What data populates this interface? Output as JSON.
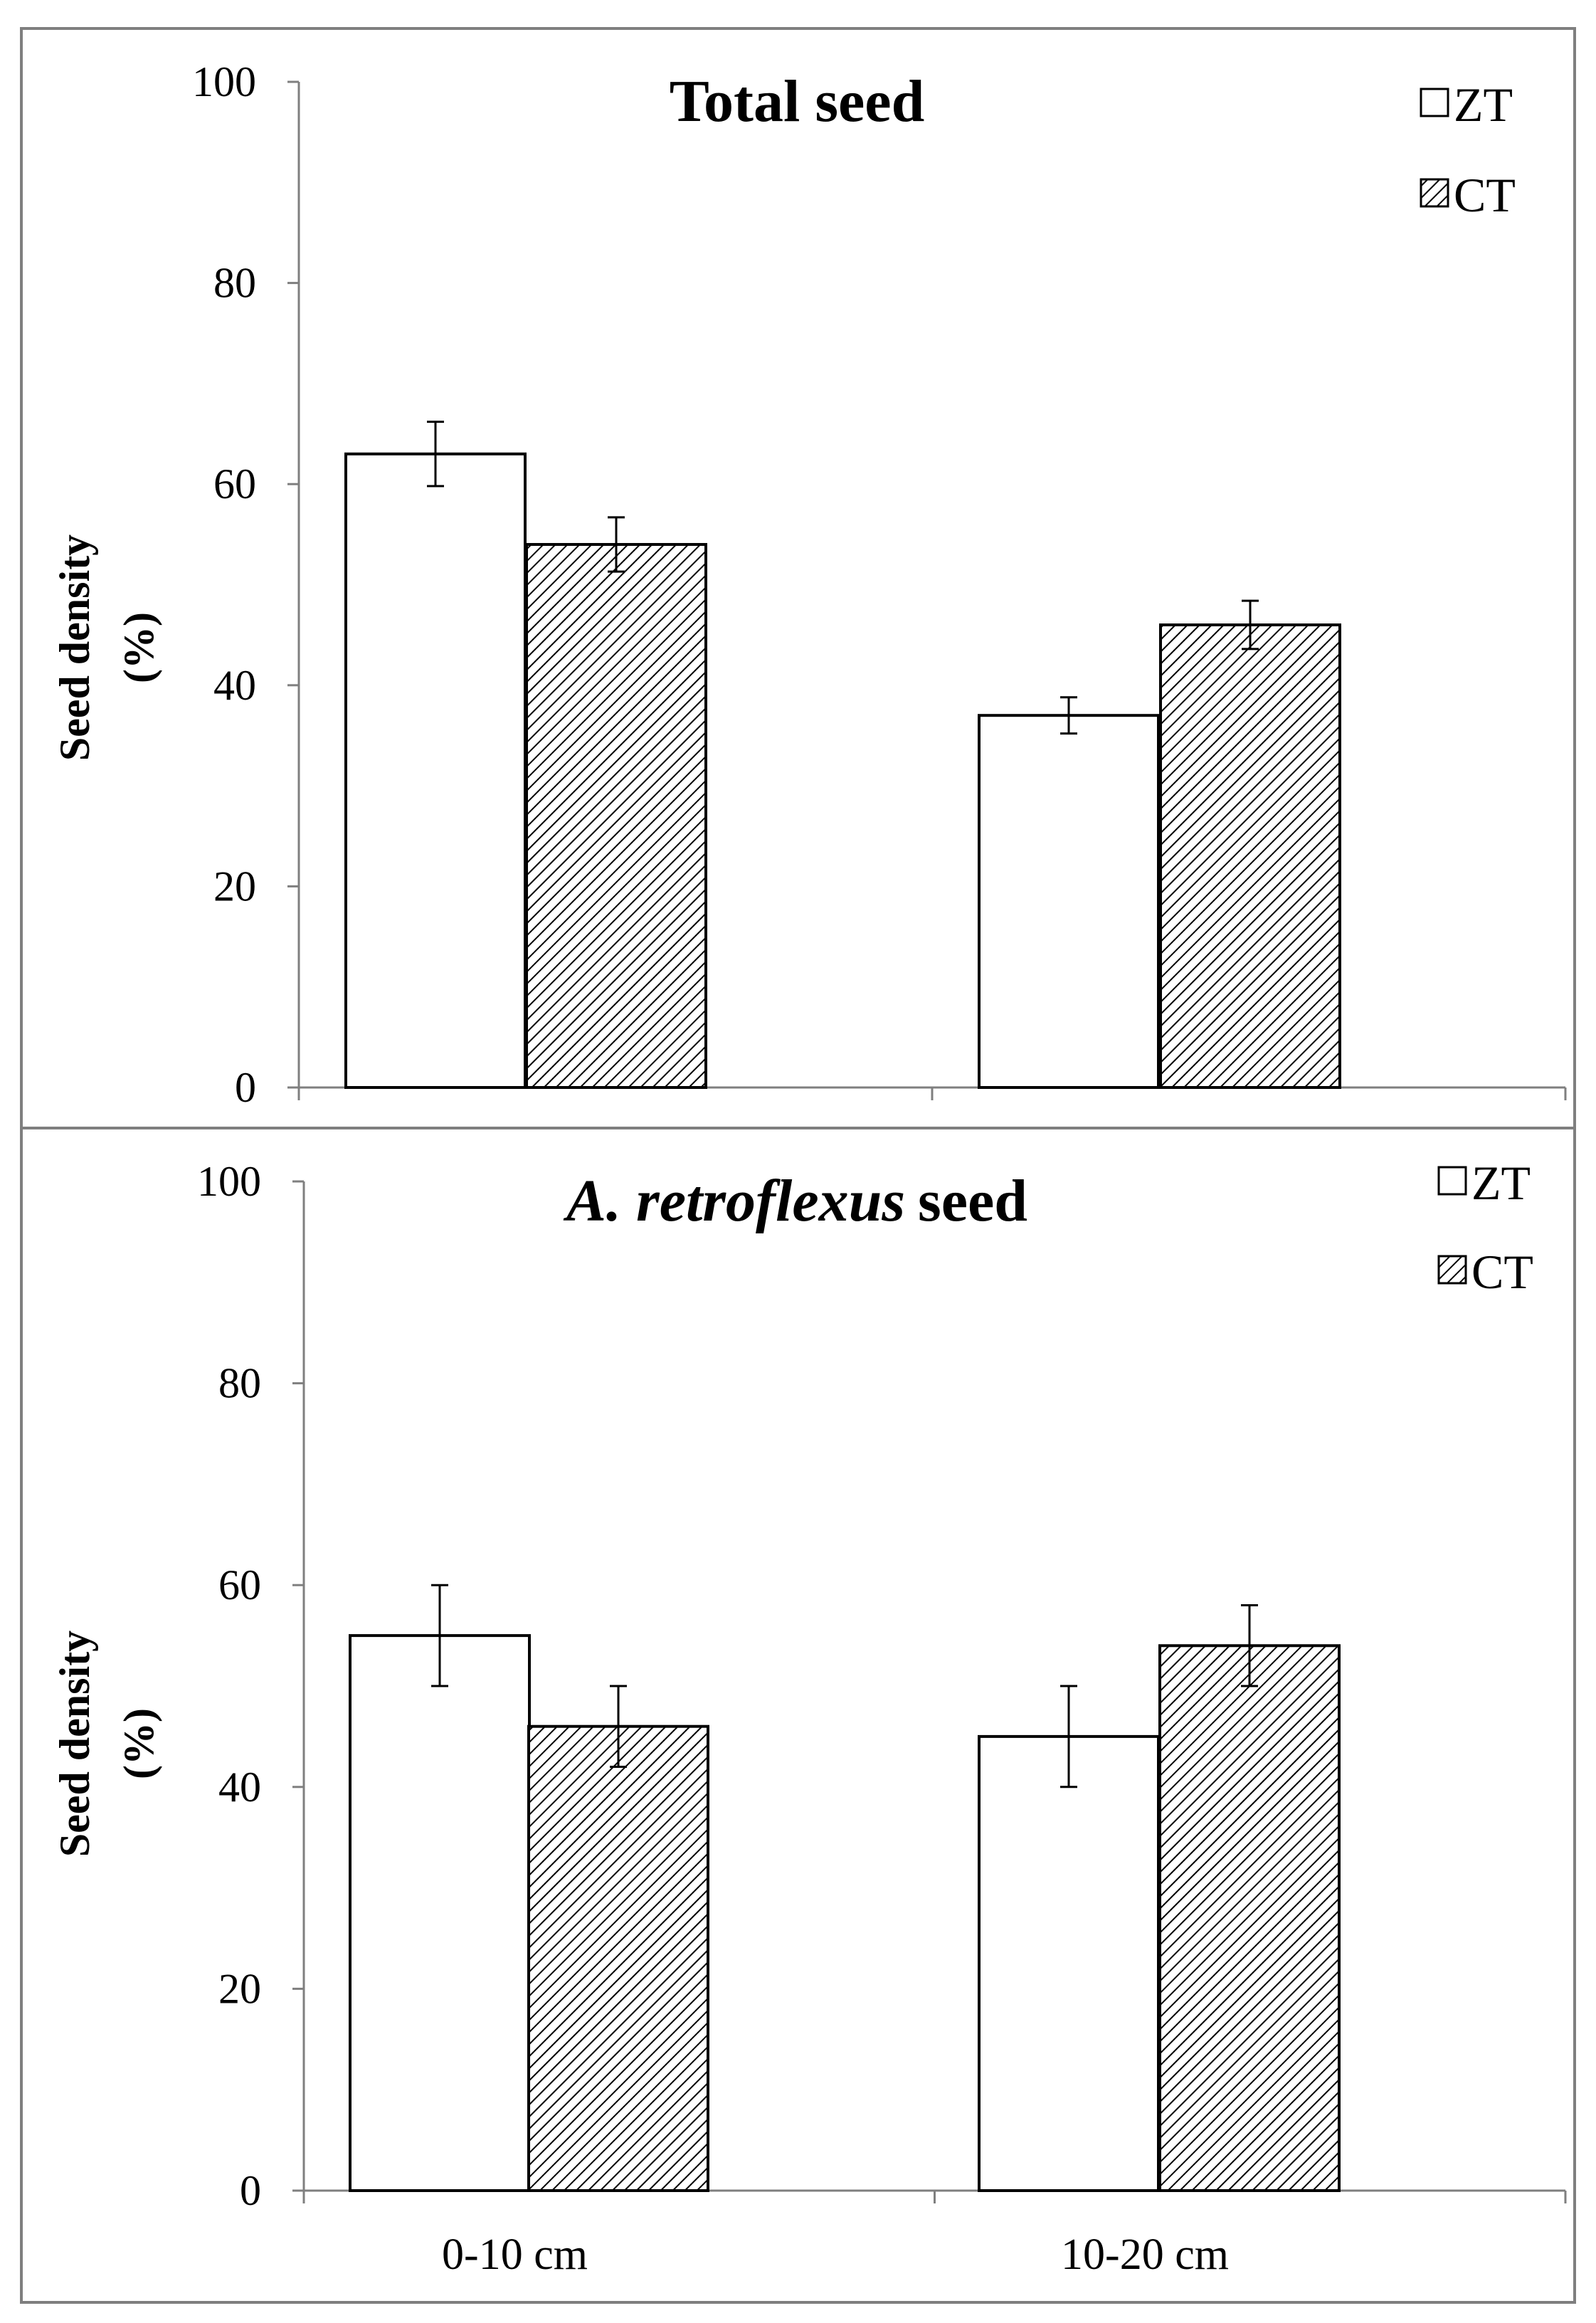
{
  "chart_data": [
    {
      "type": "bar",
      "title": "Total seed",
      "title_italic": "",
      "ylabel_line1": "Seed density",
      "ylabel_line2": "(%)",
      "ylim": [
        0,
        100
      ],
      "yticks": [
        "0",
        "20",
        "40",
        "60",
        "80",
        "100"
      ],
      "categories": [
        "0-10 cm",
        "10-20 cm"
      ],
      "show_category_labels": false,
      "legend_position": "top-right",
      "series": [
        {
          "name": "ZT",
          "values": [
            63,
            37
          ],
          "errors": [
            3.2,
            1.8
          ],
          "fill": "white"
        },
        {
          "name": "CT",
          "values": [
            54,
            46
          ],
          "errors": [
            2.7,
            2.4
          ],
          "fill": "hatched"
        }
      ]
    },
    {
      "type": "bar",
      "title": "seed",
      "title_italic": "A. retroflexus",
      "ylabel_line1": "Seed density",
      "ylabel_line2": "(%)",
      "ylim": [
        0,
        100
      ],
      "yticks": [
        "0",
        "20",
        "40",
        "60",
        "80",
        "100"
      ],
      "categories": [
        "0-10 cm",
        "10-20 cm"
      ],
      "show_category_labels": true,
      "legend_position": "top-right",
      "series": [
        {
          "name": "ZT",
          "values": [
            55,
            45
          ],
          "errors": [
            5,
            5
          ],
          "fill": "white"
        },
        {
          "name": "CT",
          "values": [
            46,
            54
          ],
          "errors": [
            4,
            4
          ],
          "fill": "hatched"
        }
      ]
    }
  ],
  "colors": {
    "bar_edge": "#000000",
    "axis": "#7f7f7f",
    "frame": "#7f7f7f"
  }
}
